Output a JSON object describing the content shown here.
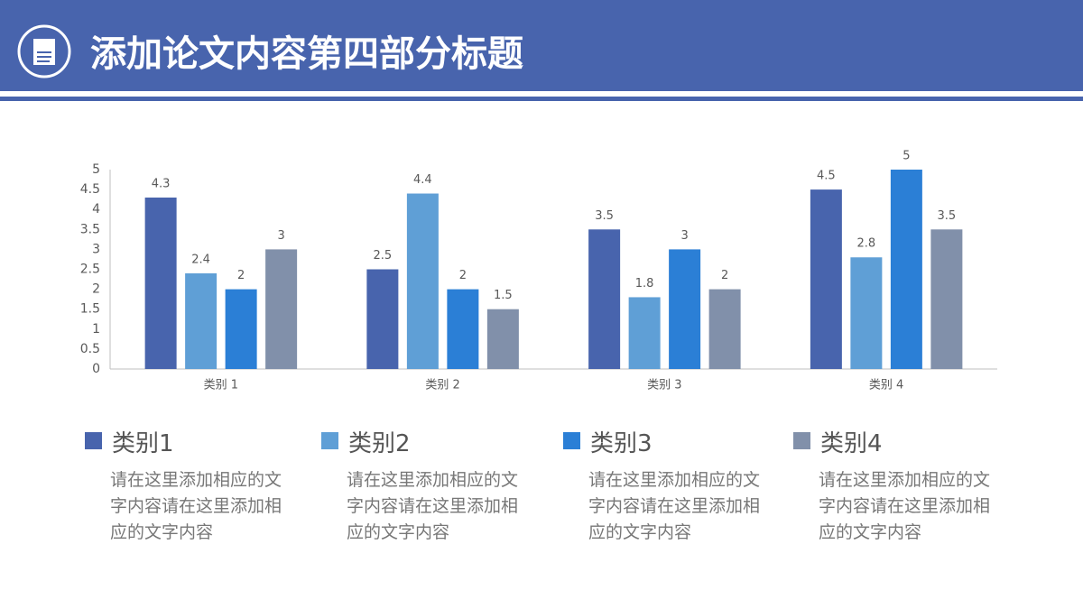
{
  "header": {
    "title": "添加论文内容第四部分标题"
  },
  "chart_data": {
    "type": "bar",
    "categories": [
      "类别 1",
      "类别 2",
      "类别 3",
      "类别 4"
    ],
    "series": [
      {
        "name": "类别1",
        "color": "#4864ad",
        "values": [
          4.3,
          2.5,
          3.5,
          4.5
        ]
      },
      {
        "name": "类别2",
        "color": "#5f9fd6",
        "values": [
          2.4,
          4.4,
          1.8,
          2.8
        ]
      },
      {
        "name": "类别3",
        "color": "#2b7fd6",
        "values": [
          2,
          2,
          3,
          5
        ]
      },
      {
        "name": "类别4",
        "color": "#8190aa",
        "values": [
          3,
          1.5,
          2,
          3.5
        ]
      }
    ],
    "ylim": [
      0,
      5
    ],
    "yticks": [
      0,
      0.5,
      1,
      1.5,
      2,
      2.5,
      3,
      3.5,
      4,
      4.5,
      5
    ],
    "grid": false
  },
  "notes": [
    "请在这里添加相应的文字内容请在这里添加相应的文字内容",
    "请在这里添加相应的文字内容请在这里添加相应的文字内容",
    "请在这里添加相应的文字内容请在这里添加相应的文字内容",
    "请在这里添加相应的文字内容请在这里添加相应的文字内容"
  ]
}
